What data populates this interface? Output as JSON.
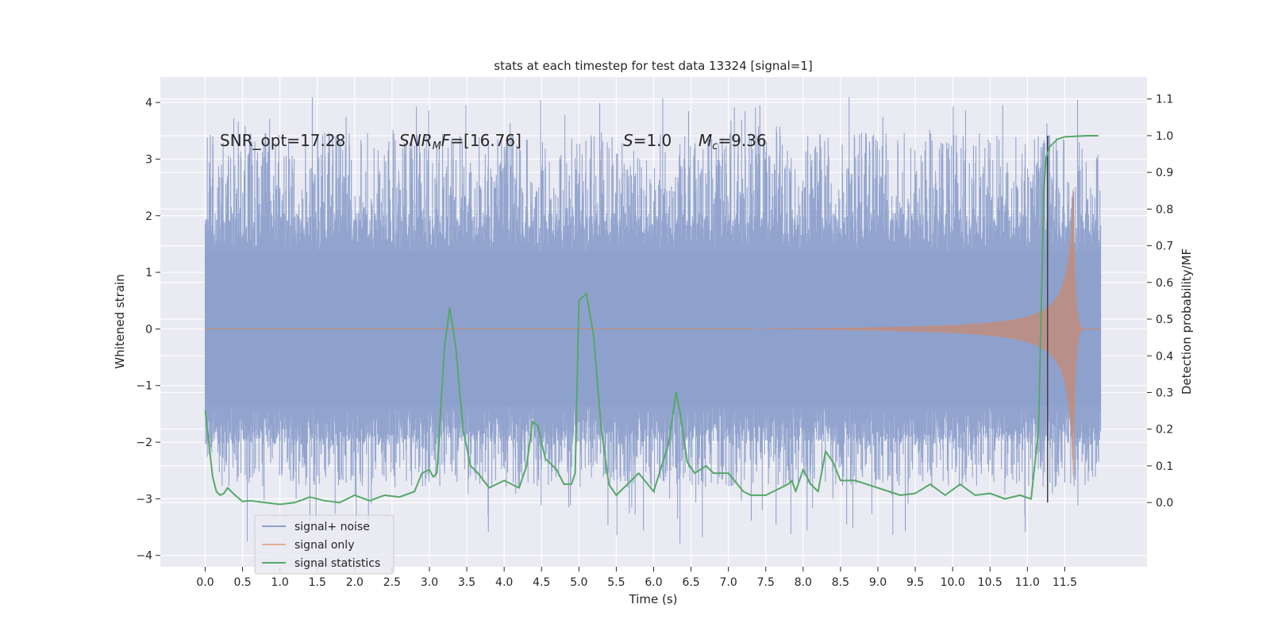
{
  "chart_data": {
    "type": "line",
    "title": "stats at each timestep for test data 13324 [signal=1]",
    "xlabel": "Time (s)",
    "ylabel": "Whitened strain",
    "y2label": "Detection probability/MF",
    "xlim": [
      -0.6,
      12.6
    ],
    "ylim": [
      -4.2,
      4.45
    ],
    "y2lim": [
      -0.175,
      1.16
    ],
    "x_ticks": [
      "0.0",
      "0.5",
      "1.0",
      "1.5",
      "2.0",
      "2.5",
      "3.0",
      "3.5",
      "4.0",
      "4.5",
      "5.0",
      "5.5",
      "6.0",
      "6.5",
      "7.0",
      "7.5",
      "8.0",
      "8.5",
      "9.0",
      "9.5",
      "10.0",
      "10.5",
      "11.0",
      "11.5"
    ],
    "y_ticks": [
      "4",
      "3",
      "2",
      "1",
      "0",
      "−1",
      "−2",
      "−3",
      "−4"
    ],
    "y2_ticks": [
      "1.1",
      "1.0",
      "0.9",
      "0.8",
      "0.7",
      "0.6",
      "0.5",
      "0.4",
      "0.3",
      "0.2",
      "0.1",
      "0.0"
    ],
    "grid": true,
    "legend_position": "lower-left",
    "annotations": {
      "snr_opt": "SNR_opt=17.28",
      "snr_mf": "=[16.76]",
      "s_value": "=1.0",
      "mc_value": "=9.36"
    },
    "marker_time": 11.27,
    "series": [
      {
        "name": "signal+ noise",
        "color": "#8da0cb",
        "time_range": [
          0.0,
          11.98
        ],
        "core_amplitude": 1.35,
        "spike_amplitude_range": [
          2.0,
          4.1
        ],
        "y_max": 4.1,
        "y_min": -3.8
      },
      {
        "name": "signal only",
        "color": "#dd8452",
        "chirp_start": 7.3,
        "peak_time": 11.62,
        "peak_amplitude": 2.5,
        "ringdown_end": 11.75
      },
      {
        "name": "signal statistics",
        "color": "#55a868",
        "x": [
          0.0,
          0.05,
          0.1,
          0.15,
          0.2,
          0.25,
          0.3,
          0.35,
          0.4,
          0.5,
          0.6,
          0.8,
          1.0,
          1.2,
          1.4,
          1.6,
          1.8,
          2.0,
          2.2,
          2.4,
          2.6,
          2.8,
          2.9,
          3.0,
          3.05,
          3.1,
          3.2,
          3.27,
          3.35,
          3.45,
          3.55,
          3.65,
          3.8,
          4.0,
          4.2,
          4.3,
          4.38,
          4.45,
          4.55,
          4.7,
          4.8,
          4.9,
          4.95,
          5.0,
          5.1,
          5.2,
          5.25,
          5.3,
          5.4,
          5.5,
          5.6,
          5.8,
          6.0,
          6.2,
          6.3,
          6.35,
          6.45,
          6.55,
          6.7,
          6.8,
          7.0,
          7.2,
          7.3,
          7.5,
          7.8,
          7.85,
          7.9,
          8.0,
          8.1,
          8.2,
          8.3,
          8.4,
          8.5,
          8.7,
          9.0,
          9.3,
          9.5,
          9.7,
          9.9,
          10.1,
          10.3,
          10.5,
          10.7,
          10.9,
          11.05,
          11.15,
          11.22,
          11.25,
          11.3,
          11.4,
          11.5,
          11.8,
          11.95
        ],
        "values": [
          0.25,
          0.16,
          0.07,
          0.03,
          0.02,
          0.025,
          0.04,
          0.03,
          0.02,
          0.003,
          0.005,
          0.0,
          -0.005,
          0.0,
          0.015,
          0.005,
          0.0,
          0.02,
          0.005,
          0.02,
          0.015,
          0.03,
          0.08,
          0.09,
          0.07,
          0.08,
          0.42,
          0.53,
          0.43,
          0.2,
          0.1,
          0.08,
          0.04,
          0.06,
          0.04,
          0.1,
          0.22,
          0.21,
          0.12,
          0.09,
          0.05,
          0.05,
          0.08,
          0.55,
          0.57,
          0.45,
          0.32,
          0.2,
          0.05,
          0.02,
          0.04,
          0.08,
          0.03,
          0.16,
          0.3,
          0.25,
          0.11,
          0.08,
          0.1,
          0.08,
          0.08,
          0.03,
          0.02,
          0.02,
          0.05,
          0.06,
          0.03,
          0.09,
          0.05,
          0.03,
          0.14,
          0.11,
          0.06,
          0.06,
          0.04,
          0.02,
          0.025,
          0.05,
          0.02,
          0.05,
          0.02,
          0.025,
          0.01,
          0.02,
          0.01,
          0.2,
          0.85,
          0.94,
          0.97,
          0.99,
          0.997,
          1.0,
          1.0
        ]
      }
    ]
  }
}
